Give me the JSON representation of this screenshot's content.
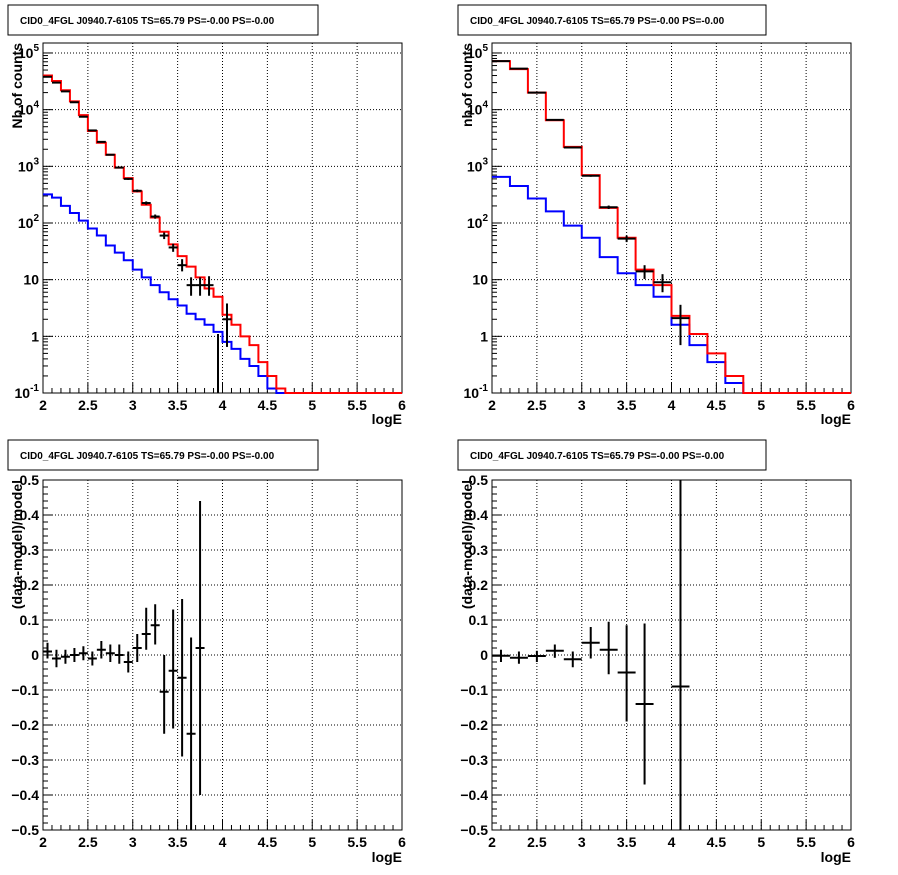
{
  "chart_data": [
    {
      "type": "histogram",
      "title": "CID0_4FGL J0940.7-6105 TS=65.79 PS=-0.00 PS=-0.00",
      "xlabel": "logE",
      "ylabel": "Nb of counts",
      "xlim": [
        2,
        6
      ],
      "ylim": [
        0.1,
        150000
      ],
      "log_y": true,
      "grid": true,
      "x_ticks": [
        "2",
        "2.5",
        "3",
        "3.5",
        "4",
        "4.5",
        "5",
        "5.5",
        "6"
      ],
      "y_ticks": [
        {
          "v": 0.1,
          "base": "10",
          "exp": "-1"
        },
        {
          "v": 1,
          "base": "1",
          "exp": ""
        },
        {
          "v": 10,
          "base": "10",
          "exp": ""
        },
        {
          "v": 100,
          "base": "10",
          "exp": "2"
        },
        {
          "v": 1000,
          "base": "10",
          "exp": "3"
        },
        {
          "v": 10000,
          "base": "10",
          "exp": "4"
        },
        {
          "v": 100000,
          "base": "10",
          "exp": "5"
        }
      ],
      "bin_edges": [
        2.0,
        2.1,
        2.2,
        2.3,
        2.4,
        2.5,
        2.6,
        2.7,
        2.8,
        2.9,
        3.0,
        3.1,
        3.2,
        3.3,
        3.4,
        3.5,
        3.6,
        3.7,
        3.8,
        3.9,
        4.0,
        4.1,
        4.2,
        4.3,
        4.4,
        4.5,
        4.6,
        4.7,
        4.8,
        4.9,
        5.0,
        5.1,
        5.2,
        5.3,
        5.4,
        5.5,
        5.6,
        5.7,
        5.8,
        5.9,
        6.0
      ],
      "series": [
        {
          "color": "#0000ff",
          "values": [
            320,
            280,
            200,
            150,
            110,
            80,
            60,
            40,
            30,
            22,
            15,
            11,
            8,
            6,
            4.5,
            3.5,
            2.5,
            2.0,
            1.6,
            1.2,
            0.8,
            0.6,
            0.4,
            0.3,
            0.2,
            0.12,
            0.1,
            0.1,
            0.1,
            0.1,
            0.1,
            0.1,
            0.1,
            0.1,
            0.1,
            0.1,
            0.1,
            0.1,
            0.1,
            0.1
          ]
        },
        {
          "color": "#ff0000",
          "values": [
            40000,
            32000,
            22000,
            14000,
            8000,
            4200,
            2600,
            1600,
            950,
            620,
            360,
            210,
            125,
            70,
            42,
            26,
            17,
            11,
            7,
            5,
            2.4,
            1.6,
            1.0,
            0.7,
            0.35,
            0.2,
            0.12,
            0.1,
            0.1,
            0.1,
            0.1,
            0.1,
            0.1,
            0.1,
            0.1,
            0.1,
            0.1,
            0.1,
            0.1,
            0.1
          ]
        }
      ],
      "data_points": [
        {
          "x": 2.05,
          "y": 38000,
          "xerr": 0.05,
          "lo": 37500,
          "hi": 38500
        },
        {
          "x": 2.15,
          "y": 30000,
          "xerr": 0.05,
          "lo": 29500,
          "hi": 30500
        },
        {
          "x": 2.25,
          "y": 21000,
          "xerr": 0.05,
          "lo": 20700,
          "hi": 21300
        },
        {
          "x": 2.35,
          "y": 13500,
          "xerr": 0.05,
          "lo": 13300,
          "hi": 13700
        },
        {
          "x": 2.45,
          "y": 7500,
          "xerr": 0.05,
          "lo": 7350,
          "hi": 7650
        },
        {
          "x": 2.55,
          "y": 4300,
          "xerr": 0.05,
          "lo": 4200,
          "hi": 4400
        },
        {
          "x": 2.65,
          "y": 2700,
          "xerr": 0.05,
          "lo": 2620,
          "hi": 2780
        },
        {
          "x": 2.75,
          "y": 1600,
          "xerr": 0.05,
          "lo": 1550,
          "hi": 1650
        },
        {
          "x": 2.85,
          "y": 950,
          "xerr": 0.05,
          "lo": 920,
          "hi": 980
        },
        {
          "x": 2.95,
          "y": 600,
          "xerr": 0.05,
          "lo": 575,
          "hi": 625
        },
        {
          "x": 3.05,
          "y": 370,
          "xerr": 0.05,
          "lo": 350,
          "hi": 390
        },
        {
          "x": 3.15,
          "y": 225,
          "xerr": 0.05,
          "lo": 210,
          "hi": 240
        },
        {
          "x": 3.25,
          "y": 130,
          "xerr": 0.05,
          "lo": 119,
          "hi": 141
        },
        {
          "x": 3.35,
          "y": 60,
          "xerr": 0.05,
          "lo": 52,
          "hi": 68
        },
        {
          "x": 3.45,
          "y": 37,
          "xerr": 0.05,
          "lo": 31,
          "hi": 43
        },
        {
          "x": 3.55,
          "y": 18,
          "xerr": 0.05,
          "lo": 14,
          "hi": 23
        },
        {
          "x": 3.65,
          "y": 8,
          "xerr": 0.05,
          "lo": 5.2,
          "hi": 11
        },
        {
          "x": 3.75,
          "y": 8,
          "xerr": 0.05,
          "lo": 5.2,
          "hi": 11
        },
        {
          "x": 3.85,
          "y": 8,
          "xerr": 0.05,
          "lo": 5.2,
          "hi": 11.5
        },
        {
          "x": 4.05,
          "y": 2,
          "xerr": 0.05,
          "lo": 0.65,
          "hi": 3.8
        }
      ],
      "extra_segments": [
        {
          "x": 3.95,
          "lo": 0.1,
          "hi": 1.1
        }
      ]
    },
    {
      "type": "histogram",
      "title": "CID0_4FGL J0940.7-6105 TS=65.79 PS=-0.00 PS=-0.00",
      "xlabel": "logE",
      "ylabel": "nb of counts",
      "xlim": [
        2,
        6
      ],
      "ylim": [
        0.1,
        150000
      ],
      "log_y": true,
      "grid": true,
      "x_ticks": [
        "2",
        "2.5",
        "3",
        "3.5",
        "4",
        "4.5",
        "5",
        "5.5",
        "6"
      ],
      "y_ticks": [
        {
          "v": 0.1,
          "base": "10",
          "exp": "-1"
        },
        {
          "v": 1,
          "base": "1",
          "exp": ""
        },
        {
          "v": 10,
          "base": "10",
          "exp": ""
        },
        {
          "v": 100,
          "base": "10",
          "exp": "2"
        },
        {
          "v": 1000,
          "base": "10",
          "exp": "3"
        },
        {
          "v": 10000,
          "base": "10",
          "exp": "4"
        },
        {
          "v": 100000,
          "base": "10",
          "exp": "5"
        }
      ],
      "bin_edges": [
        2.0,
        2.2,
        2.4,
        2.6,
        2.8,
        3.0,
        3.2,
        3.4,
        3.6,
        3.8,
        4.0,
        4.2,
        4.4,
        4.6,
        4.8,
        5.0,
        5.2,
        5.4,
        5.6,
        5.8,
        6.0
      ],
      "series": [
        {
          "color": "#0000ff",
          "values": [
            650,
            450,
            270,
            160,
            90,
            55,
            25,
            13,
            8,
            5,
            1.6,
            0.7,
            0.35,
            0.15,
            0.1,
            0.1,
            0.1,
            0.1,
            0.1,
            0.1
          ]
        },
        {
          "color": "#ff0000",
          "values": [
            72000,
            52000,
            20000,
            6500,
            2200,
            700,
            185,
            55,
            15,
            8,
            2.3,
            1.1,
            0.5,
            0.2,
            0.1,
            0.1,
            0.1,
            0.1,
            0.1,
            0.1
          ]
        }
      ],
      "data_points": [
        {
          "x": 2.1,
          "y": 72000,
          "xerr": 0.1,
          "lo": 71500,
          "hi": 72500
        },
        {
          "x": 2.3,
          "y": 53000,
          "xerr": 0.1,
          "lo": 52500,
          "hi": 53500
        },
        {
          "x": 2.5,
          "y": 20000,
          "xerr": 0.1,
          "lo": 19800,
          "hi": 20200
        },
        {
          "x": 2.7,
          "y": 6600,
          "xerr": 0.1,
          "lo": 6500,
          "hi": 6700
        },
        {
          "x": 2.9,
          "y": 2150,
          "xerr": 0.1,
          "lo": 2100,
          "hi": 2200
        },
        {
          "x": 3.1,
          "y": 680,
          "xerr": 0.1,
          "lo": 655,
          "hi": 705
        },
        {
          "x": 3.3,
          "y": 190,
          "xerr": 0.1,
          "lo": 177,
          "hi": 203
        },
        {
          "x": 3.5,
          "y": 53,
          "xerr": 0.1,
          "lo": 46,
          "hi": 60
        },
        {
          "x": 3.7,
          "y": 14,
          "xerr": 0.1,
          "lo": 10.3,
          "hi": 18
        },
        {
          "x": 3.9,
          "y": 9,
          "xerr": 0.1,
          "lo": 6,
          "hi": 12.5
        },
        {
          "x": 4.1,
          "y": 2.1,
          "xerr": 0.1,
          "lo": 0.7,
          "hi": 3.6
        }
      ],
      "extra_segments": []
    },
    {
      "type": "scatter",
      "title": "CID0_4FGL J0940.7-6105 TS=65.79 PS=-0.00 PS=-0.00",
      "xlabel": "logE",
      "ylabel": "(data-model)/model",
      "xlim": [
        2,
        6
      ],
      "ylim": [
        -0.5,
        0.5
      ],
      "log_y": false,
      "grid": true,
      "x_ticks": [
        "2",
        "2.5",
        "3",
        "3.5",
        "4",
        "4.5",
        "5",
        "5.5",
        "6"
      ],
      "y_ticks": [
        {
          "v": -0.5,
          "label": "−0.5"
        },
        {
          "v": -0.4,
          "label": "−0.4"
        },
        {
          "v": -0.3,
          "label": "−0.3"
        },
        {
          "v": -0.2,
          "label": "−0.2"
        },
        {
          "v": -0.1,
          "label": "−0.1"
        },
        {
          "v": 0,
          "label": "0"
        },
        {
          "v": 0.1,
          "label": "0.1"
        },
        {
          "v": 0.2,
          "label": "0.2"
        },
        {
          "v": 0.3,
          "label": "0.3"
        },
        {
          "v": 0.4,
          "label": "0.4"
        },
        {
          "v": 0.5,
          "label": "0.5"
        }
      ],
      "data_points": [
        {
          "x": 2.05,
          "y": 0.01,
          "xerr": 0.05,
          "lo": -0.01,
          "hi": 0.035
        },
        {
          "x": 2.15,
          "y": -0.01,
          "xerr": 0.05,
          "lo": -0.035,
          "hi": 0.015
        },
        {
          "x": 2.25,
          "y": -0.005,
          "xerr": 0.05,
          "lo": -0.025,
          "hi": 0.015
        },
        {
          "x": 2.35,
          "y": 0.0,
          "xerr": 0.05,
          "lo": -0.02,
          "hi": 0.02
        },
        {
          "x": 2.45,
          "y": 0.005,
          "xerr": 0.05,
          "lo": -0.015,
          "hi": 0.025
        },
        {
          "x": 2.55,
          "y": -0.01,
          "xerr": 0.05,
          "lo": -0.03,
          "hi": 0.01
        },
        {
          "x": 2.65,
          "y": 0.015,
          "xerr": 0.05,
          "lo": -0.01,
          "hi": 0.04
        },
        {
          "x": 2.75,
          "y": 0.005,
          "xerr": 0.05,
          "lo": -0.02,
          "hi": 0.03
        },
        {
          "x": 2.85,
          "y": 0.0,
          "xerr": 0.05,
          "lo": -0.025,
          "hi": 0.03
        },
        {
          "x": 2.95,
          "y": -0.02,
          "xerr": 0.05,
          "lo": -0.05,
          "hi": 0.01
        },
        {
          "x": 3.05,
          "y": 0.02,
          "xerr": 0.05,
          "lo": -0.02,
          "hi": 0.06
        },
        {
          "x": 3.15,
          "y": 0.06,
          "xerr": 0.05,
          "lo": 0.015,
          "hi": 0.135
        },
        {
          "x": 3.25,
          "y": 0.085,
          "xerr": 0.05,
          "lo": 0.03,
          "hi": 0.145
        },
        {
          "x": 3.35,
          "y": -0.105,
          "xerr": 0.05,
          "lo": -0.225,
          "hi": 0.0
        },
        {
          "x": 3.45,
          "y": -0.045,
          "xerr": 0.05,
          "lo": -0.21,
          "hi": 0.13
        },
        {
          "x": 3.55,
          "y": -0.065,
          "xerr": 0.05,
          "lo": -0.29,
          "hi": 0.16
        },
        {
          "x": 3.65,
          "y": -0.225,
          "xerr": 0.05,
          "lo": -0.5,
          "hi": 0.05
        },
        {
          "x": 3.75,
          "y": 0.02,
          "xerr": 0.05,
          "lo": -0.4,
          "hi": 0.44
        }
      ],
      "extra_segments": []
    },
    {
      "type": "scatter",
      "title": "CID0_4FGL J0940.7-6105 TS=65.79 PS=-0.00 PS=-0.00",
      "xlabel": "logE",
      "ylabel": "(data-model)/model",
      "xlim": [
        2,
        6
      ],
      "ylim": [
        -0.5,
        0.5
      ],
      "log_y": false,
      "grid": true,
      "x_ticks": [
        "2",
        "2.5",
        "3",
        "3.5",
        "4",
        "4.5",
        "5",
        "5.5",
        "6"
      ],
      "y_ticks": [
        {
          "v": -0.5,
          "label": "−0.5"
        },
        {
          "v": -0.4,
          "label": "−0.4"
        },
        {
          "v": -0.3,
          "label": "−0.3"
        },
        {
          "v": -0.2,
          "label": "−0.2"
        },
        {
          "v": -0.1,
          "label": "−0.1"
        },
        {
          "v": 0,
          "label": "0"
        },
        {
          "v": 0.1,
          "label": "0.1"
        },
        {
          "v": 0.2,
          "label": "0.2"
        },
        {
          "v": 0.3,
          "label": "0.3"
        },
        {
          "v": 0.4,
          "label": "0.4"
        },
        {
          "v": 0.5,
          "label": "0.5"
        }
      ],
      "data_points": [
        {
          "x": 2.1,
          "y": -0.002,
          "xerr": 0.1,
          "lo": -0.02,
          "hi": 0.015
        },
        {
          "x": 2.3,
          "y": -0.008,
          "xerr": 0.1,
          "lo": -0.025,
          "hi": 0.01
        },
        {
          "x": 2.5,
          "y": -0.003,
          "xerr": 0.1,
          "lo": -0.02,
          "hi": 0.012
        },
        {
          "x": 2.7,
          "y": 0.012,
          "xerr": 0.1,
          "lo": -0.008,
          "hi": 0.03
        },
        {
          "x": 2.9,
          "y": -0.012,
          "xerr": 0.1,
          "lo": -0.035,
          "hi": 0.01
        },
        {
          "x": 3.1,
          "y": 0.035,
          "xerr": 0.1,
          "lo": -0.01,
          "hi": 0.08
        },
        {
          "x": 3.3,
          "y": 0.015,
          "xerr": 0.1,
          "lo": -0.055,
          "hi": 0.095
        },
        {
          "x": 3.5,
          "y": -0.05,
          "xerr": 0.1,
          "lo": -0.19,
          "hi": 0.085
        },
        {
          "x": 3.7,
          "y": -0.14,
          "xerr": 0.1,
          "lo": -0.37,
          "hi": 0.09
        },
        {
          "x": 4.1,
          "y": -0.09,
          "xerr": 0.1,
          "lo": -0.5,
          "hi": 0.5
        }
      ],
      "extra_segments": []
    }
  ]
}
